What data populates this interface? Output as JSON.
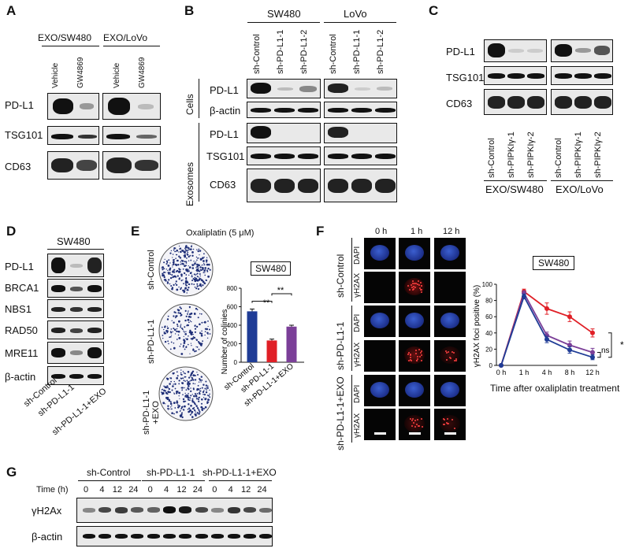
{
  "panels": {
    "A": {
      "letter": "A",
      "group1": "EXO/SW480",
      "group2": "EXO/LoVo",
      "lanes": [
        "Vehicle",
        "GW4869",
        "Vehicle",
        "GW4869"
      ],
      "rows": [
        "PD-L1",
        "TSG101",
        "CD63"
      ]
    },
    "B": {
      "letter": "B",
      "group1": "SW480",
      "group2": "LoVo",
      "lanes": [
        "sh-Control",
        "sh-PD-L1-1",
        "sh-PD-L1-2",
        "sh-Control",
        "sh-PD-L1-1",
        "sh-PD-L1-2"
      ],
      "section1": "Cells",
      "section2": "Exosomes",
      "cell_rows": [
        "PD-L1",
        "β-actin"
      ],
      "exo_rows": [
        "PD-L1",
        "TSG101",
        "CD63"
      ]
    },
    "C": {
      "letter": "C",
      "rows": [
        "PD-L1",
        "TSG101",
        "CD63"
      ],
      "lanes": [
        "sh-Control",
        "sh-PIPKIγ-1",
        "sh-PIPKIγ-2"
      ],
      "group1": "EXO/SW480",
      "group2": "EXO/LoVo"
    },
    "D": {
      "letter": "D",
      "title": "SW480",
      "rows": [
        "PD-L1",
        "BRCA1",
        "NBS1",
        "RAD50",
        "MRE11",
        "β-actin"
      ],
      "lanes": [
        "sh-Control",
        "sh-PD-L1-1",
        "sh-PD-L1-1+EXO"
      ]
    },
    "E": {
      "letter": "E",
      "title": "Oxaliplatin (5 μM)",
      "dish_labels": [
        "sh-Control",
        "sh-PD-L1-1",
        "sh-PD-L1-1\n+EXO"
      ],
      "badge": "SW480",
      "ylabel": "Number of colinies",
      "sig1": "**",
      "sig2": "**"
    },
    "F": {
      "letter": "F",
      "times": [
        "0 h",
        "1 h",
        "12 h"
      ],
      "groups": [
        "sh-Control",
        "sh-PD-L1-1",
        "sh-PD-L1-1+EXO"
      ],
      "stains": [
        "DAPI",
        "γH2AX"
      ],
      "badge": "SW480",
      "ylabel": "γH2AX foci positive (%)",
      "xlabel": "Time after oxaliplatin treatment",
      "sig_ns": "ns",
      "sig_star": "*"
    },
    "G": {
      "letter": "G",
      "groups": [
        "sh-Control",
        "sh-PD-L1-1",
        "sh-PD-L1-1+EXO"
      ],
      "time_label": "Time (h)",
      "times": [
        "0",
        "4",
        "12",
        "24",
        "0",
        "4",
        "12",
        "24",
        "0",
        "4",
        "12",
        "24"
      ],
      "rows": [
        "γH2Ax",
        "β-actin"
      ]
    }
  },
  "chart_data": [
    {
      "type": "bar",
      "title": "",
      "categories": [
        "sh-Control",
        "sh-PD-L1-1",
        "sh-PD-L1-1+EXO"
      ],
      "values": [
        550,
        235,
        385
      ],
      "errors": [
        25,
        15,
        15
      ],
      "colors": [
        "#1f3c96",
        "#e01f26",
        "#7b3f98"
      ],
      "ylabel": "Number of colinies",
      "ylim": [
        0,
        800
      ],
      "yticks": [
        "0",
        "200",
        "400",
        "600",
        "800"
      ]
    },
    {
      "type": "line",
      "title": "SW480",
      "x": [
        "0 h",
        "1 h",
        "4 h",
        "8 h",
        "12 h"
      ],
      "series": [
        {
          "values": [
            0,
            91,
            70,
            60,
            40
          ],
          "errors": [
            0,
            3,
            7,
            6,
            5
          ],
          "color": "#e01f26"
        },
        {
          "values": [
            0,
            89,
            37,
            25,
            16
          ],
          "errors": [
            0,
            3,
            4,
            5,
            5
          ],
          "color": "#7b3f98"
        },
        {
          "values": [
            0,
            85,
            32,
            19,
            10
          ],
          "errors": [
            0,
            3,
            4,
            4,
            3
          ],
          "color": "#1f3c96"
        }
      ],
      "ylabel": "γH2AX foci positive (%)",
      "xlabel": "Time after oxaliplatin treatment",
      "ylim": [
        0,
        100
      ],
      "yticks": [
        "0",
        "20",
        "40",
        "60",
        "80",
        "100"
      ]
    }
  ]
}
